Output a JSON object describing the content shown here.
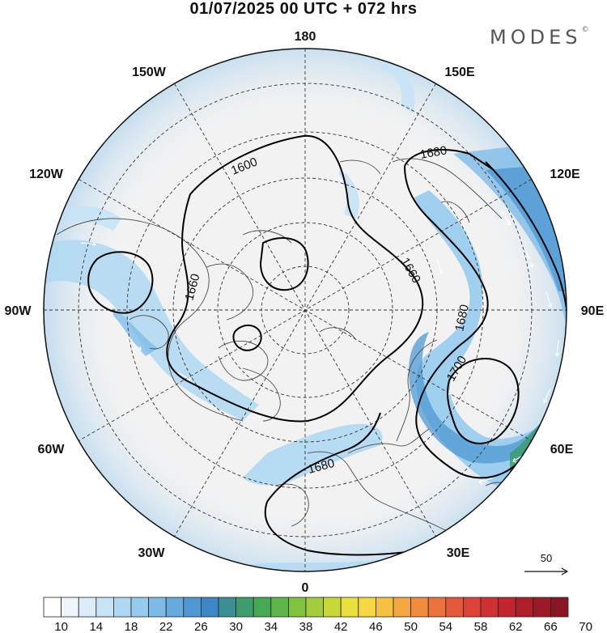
{
  "header": {
    "title": "01/07/2025  00 UTC  + 072 hrs",
    "brand": "MODES",
    "brand_mark": "©"
  },
  "map": {
    "projection": "north-polar-stereographic",
    "longitude_labels": [
      {
        "lon": 180,
        "label": "180"
      },
      {
        "lon": 150,
        "label": "150E"
      },
      {
        "lon": 120,
        "label": "120E"
      },
      {
        "lon": 90,
        "label": "90E"
      },
      {
        "lon": 60,
        "label": "60E"
      },
      {
        "lon": 30,
        "label": "30E"
      },
      {
        "lon": 0,
        "label": "0"
      },
      {
        "lon": -30,
        "label": "30W"
      },
      {
        "lon": -60,
        "label": "60W"
      },
      {
        "lon": -90,
        "label": "90W"
      },
      {
        "lon": -120,
        "label": "120W"
      },
      {
        "lon": -150,
        "label": "150W"
      }
    ],
    "contour_labels": [
      "1600",
      "1660",
      "1660",
      "1680",
      "1680",
      "1700",
      "1680"
    ],
    "wind_reference": {
      "value": "50"
    }
  },
  "colorbar": {
    "labels": [
      "10",
      "14",
      "18",
      "22",
      "26",
      "30",
      "34",
      "38",
      "42",
      "46",
      "50",
      "54",
      "58",
      "62",
      "66",
      "70"
    ],
    "colors": [
      "#ffffff",
      "#eef6fc",
      "#dcedf9",
      "#c7e3f6",
      "#b0d8f2",
      "#97cbee",
      "#7fbbe7",
      "#66aade",
      "#4f98d3",
      "#3f86c6",
      "#3d8f96",
      "#3e9c6e",
      "#46a955",
      "#5eb64a",
      "#7fc241",
      "#a4cd3d",
      "#c8d73a",
      "#e9df3d",
      "#f7d743",
      "#f6c043",
      "#f4a742",
      "#f08c40",
      "#eb723d",
      "#e4583a",
      "#dc4137",
      "#cf3034",
      "#bf2630",
      "#ae1f2c",
      "#9b1a28",
      "#8a1624"
    ]
  }
}
